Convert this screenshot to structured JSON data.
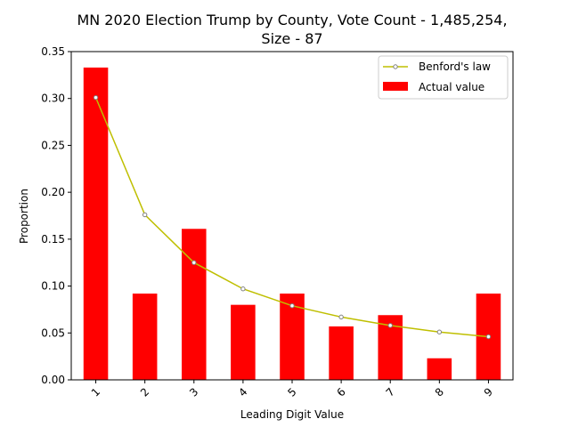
{
  "chart_data": {
    "type": "bar",
    "title_line1": "MN 2020 Election Trump by County,  Vote Count - 1,485,254,",
    "title_line2": "Size - 87",
    "xlabel": "Leading Digit Value",
    "ylabel": "Proportion",
    "categories": [
      "1",
      "2",
      "3",
      "4",
      "5",
      "6",
      "7",
      "8",
      "9"
    ],
    "ylim": [
      0,
      0.35
    ],
    "yticks": [
      "0.00",
      "0.05",
      "0.10",
      "0.15",
      "0.20",
      "0.25",
      "0.30",
      "0.35"
    ],
    "grid": false,
    "legend_position": "top-right",
    "series": [
      {
        "name": "Benford's law",
        "kind": "line",
        "color": "#bfbf00",
        "values": [
          0.301,
          0.176,
          0.125,
          0.097,
          0.079,
          0.067,
          0.058,
          0.051,
          0.046
        ]
      },
      {
        "name": "Actual value",
        "kind": "bar",
        "color": "#ff0000",
        "values": [
          0.333,
          0.092,
          0.161,
          0.08,
          0.092,
          0.057,
          0.069,
          0.023,
          0.092
        ]
      }
    ]
  }
}
